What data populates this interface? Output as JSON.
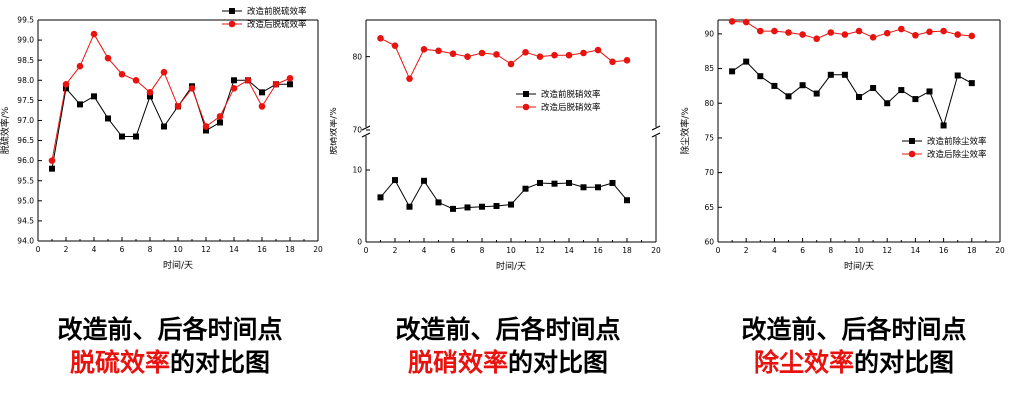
{
  "chart_data": [
    {
      "type": "line",
      "x_title": "时间/天",
      "y_title": "脱硫效率/%",
      "x_range": [
        0,
        20
      ],
      "x_ticks": [
        0,
        2,
        4,
        6,
        8,
        10,
        12,
        14,
        16,
        18,
        20
      ],
      "y_range": [
        94.0,
        99.5
      ],
      "y_ticks": [
        "94.0",
        "94.5",
        "95.0",
        "95.5",
        "96.0",
        "96.5",
        "97.0",
        "97.5",
        "98.0",
        "98.5",
        "99.0",
        "99.5"
      ],
      "axis_break": false,
      "legend_position": "top-right",
      "series": [
        {
          "name": "改造前脱硫效率",
          "color": "#000000",
          "marker": "square",
          "x": [
            1,
            2,
            3,
            4,
            5,
            6,
            7,
            8,
            9,
            10,
            11,
            12,
            13,
            14,
            15,
            16,
            17,
            18
          ],
          "values": [
            95.8,
            97.8,
            97.4,
            97.6,
            97.05,
            96.6,
            96.6,
            97.6,
            96.85,
            97.35,
            97.85,
            96.75,
            96.95,
            98.0,
            98.0,
            97.7,
            97.9,
            97.9
          ]
        },
        {
          "name": "改造后脱硫效率",
          "color": "#e8130f",
          "marker": "circle",
          "x": [
            1,
            2,
            3,
            4,
            5,
            6,
            7,
            8,
            9,
            10,
            11,
            12,
            13,
            14,
            15,
            16,
            17,
            18
          ],
          "values": [
            96.0,
            97.9,
            98.35,
            99.15,
            98.55,
            98.15,
            98.0,
            97.7,
            98.2,
            97.35,
            97.8,
            96.85,
            97.1,
            97.8,
            98.0,
            97.35,
            97.9,
            98.05
          ]
        }
      ]
    },
    {
      "type": "line",
      "x_title": "时间/天",
      "y_title": "脱硝效率/%",
      "x_range": [
        0,
        20
      ],
      "x_ticks": [
        0,
        2,
        4,
        6,
        8,
        10,
        12,
        14,
        16,
        18,
        20
      ],
      "y_lower_range": [
        0,
        15
      ],
      "y_upper_range": [
        70,
        85
      ],
      "y_ticks": [
        "0",
        "10",
        "70",
        "80"
      ],
      "axis_break": true,
      "legend_position": "center-right",
      "series": [
        {
          "name": "改造前脱硝效率",
          "color": "#000000",
          "marker": "square",
          "x": [
            1,
            2,
            3,
            4,
            5,
            6,
            7,
            8,
            9,
            10,
            11,
            12,
            13,
            14,
            15,
            16,
            17,
            18
          ],
          "values": [
            6.2,
            8.6,
            4.9,
            8.5,
            5.5,
            4.6,
            4.8,
            4.9,
            5.0,
            5.2,
            7.4,
            8.2,
            8.1,
            8.2,
            7.6,
            7.6,
            8.2,
            5.8
          ]
        },
        {
          "name": "改造后脱硝效率",
          "color": "#e8130f",
          "marker": "circle",
          "x": [
            1,
            2,
            3,
            4,
            5,
            6,
            7,
            8,
            9,
            10,
            11,
            12,
            13,
            14,
            15,
            16,
            17,
            18
          ],
          "values": [
            82.5,
            81.5,
            77.0,
            81.0,
            80.8,
            80.4,
            80.0,
            80.5,
            80.3,
            79.0,
            80.6,
            80.0,
            80.2,
            80.2,
            80.5,
            80.9,
            79.3,
            79.5
          ]
        }
      ]
    },
    {
      "type": "line",
      "x_title": "时间/天",
      "y_title": "除尘效率/%",
      "x_range": [
        0,
        20
      ],
      "x_ticks": [
        0,
        2,
        4,
        6,
        8,
        10,
        12,
        14,
        16,
        18,
        20
      ],
      "y_range": [
        60,
        92
      ],
      "y_ticks": [
        "60",
        "65",
        "70",
        "75",
        "80",
        "85",
        "90"
      ],
      "axis_break": false,
      "legend_position": "right",
      "series": [
        {
          "name": "改造前除尘效率",
          "color": "#000000",
          "marker": "square",
          "x": [
            1,
            2,
            3,
            4,
            5,
            6,
            7,
            8,
            9,
            10,
            11,
            12,
            13,
            14,
            15,
            16,
            17,
            18
          ],
          "values": [
            84.6,
            86.0,
            83.9,
            82.5,
            81.0,
            82.6,
            81.4,
            84.1,
            84.1,
            80.9,
            82.2,
            80.0,
            81.9,
            80.6,
            81.7,
            76.8,
            84.0,
            82.9
          ]
        },
        {
          "name": "改造后除尘效率",
          "color": "#e8130f",
          "marker": "circle",
          "x": [
            1,
            2,
            3,
            4,
            5,
            6,
            7,
            8,
            9,
            10,
            11,
            12,
            13,
            14,
            15,
            16,
            17,
            18
          ],
          "values": [
            91.8,
            91.7,
            90.4,
            90.4,
            90.2,
            89.9,
            89.3,
            90.2,
            89.9,
            90.4,
            89.5,
            90.1,
            90.7,
            89.8,
            90.3,
            90.4,
            89.9,
            89.7
          ]
        }
      ]
    }
  ],
  "captions": [
    {
      "line1": "改造前、后各时间点",
      "highlight": "脱硫效率",
      "suffix": "的对比图"
    },
    {
      "line1": "改造前、后各时间点",
      "highlight": "脱硝效率",
      "suffix": "的对比图"
    },
    {
      "line1": "改造前、后各时间点",
      "highlight": "除尘效率",
      "suffix": "的对比图"
    }
  ],
  "colors": {
    "highlight": "#e8130f",
    "series_before": "#000000",
    "series_after": "#e8130f"
  }
}
